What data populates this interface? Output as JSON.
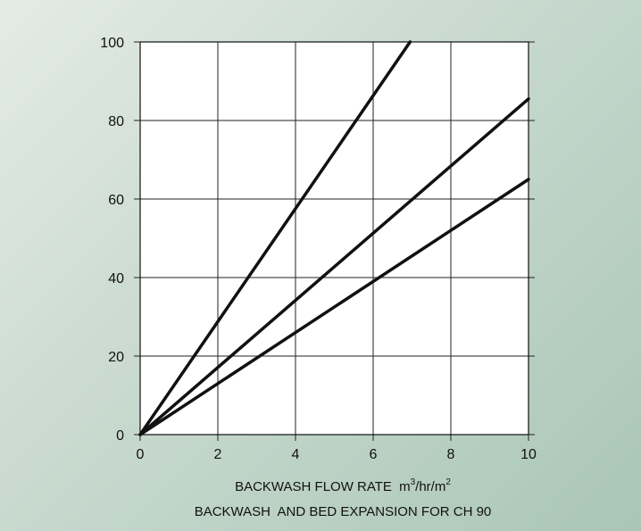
{
  "chart_data": {
    "type": "line",
    "title": "",
    "xlabel": "BACKWASH FLOW RATE",
    "xlabel_unit_base": "m",
    "xlabel_unit_sup1": "3",
    "xlabel_unit_mid": "/hr/m",
    "xlabel_unit_sup2": "2",
    "caption": "BACKWASH  AND BED EXPANSION FOR CH 90",
    "ylabel": "",
    "xlim": [
      0,
      10
    ],
    "ylim": [
      0,
      100
    ],
    "x_ticks": [
      "0",
      "2",
      "4",
      "6",
      "8",
      "10"
    ],
    "y_ticks": [
      "0",
      "20",
      "40",
      "60",
      "80",
      "100"
    ],
    "grid": true,
    "legend": "none",
    "line_color": "#111111",
    "series": [
      {
        "x": [
          0,
          6.95
        ],
        "values": [
          0,
          100
        ]
      },
      {
        "x": [
          0,
          10
        ],
        "values": [
          0,
          85.5
        ]
      },
      {
        "x": [
          0,
          10
        ],
        "values": [
          0,
          65
        ]
      }
    ]
  }
}
